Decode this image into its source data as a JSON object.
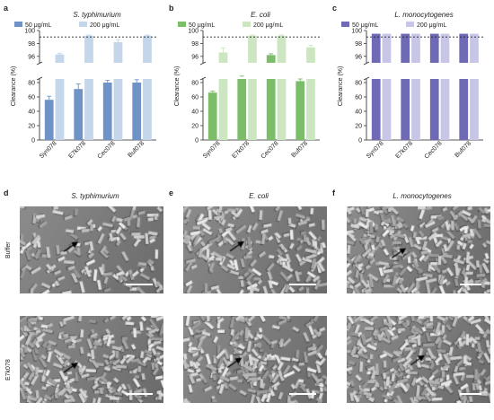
{
  "panels": {
    "a": {
      "letter": "a",
      "title": "S. typhimurium"
    },
    "b": {
      "letter": "b",
      "title": "E. coli"
    },
    "c": {
      "letter": "c",
      "title": "L. monocytogenes"
    },
    "d": {
      "letter": "d",
      "title": "S. typhimurium"
    },
    "e": {
      "letter": "e",
      "title": "E. coli"
    },
    "f": {
      "letter": "f",
      "title": "L. monocytogenes"
    }
  },
  "row_labels": {
    "buffer": "Buffer",
    "peptide": "E7k078"
  },
  "colors": {
    "a_dark": "#6f93c7",
    "a_light": "#c4d6ea",
    "b_dark": "#7cbd6a",
    "b_light": "#cde6c2",
    "c_dark": "#6e6ab5",
    "c_light": "#c8c6e6"
  },
  "chart_data": [
    {
      "type": "bar",
      "title": "S. typhimurium",
      "ylabel": "Clearance (%)",
      "categories": [
        "Syn078",
        "E7k078",
        "Cec078",
        "Buf078"
      ],
      "series": [
        {
          "name": "50 μg/mL",
          "values": [
            56,
            71,
            80,
            80
          ],
          "errors": [
            5,
            7,
            3,
            4
          ]
        },
        {
          "name": "200 μg/mL",
          "values": [
            96.3,
            99.2,
            98.2,
            99.2
          ],
          "errors": [
            0.2,
            0.1,
            0.4,
            0.1
          ]
        }
      ],
      "y_lower_ticks": [
        "0",
        "20",
        "40",
        "60",
        "80"
      ],
      "y_upper_ticks": [
        "96",
        "98",
        "100"
      ],
      "broken_axis": {
        "lower": [
          0,
          85
        ],
        "upper": [
          95,
          100
        ]
      },
      "reference_line": 99,
      "legend": "top"
    },
    {
      "type": "bar",
      "title": "E. coli",
      "ylabel": "Clearance (%)",
      "categories": [
        "Syn078",
        "E7k078",
        "Cec078",
        "Buf078"
      ],
      "series": [
        {
          "name": "50 μg/mL",
          "values": [
            66,
            88,
            96.2,
            82
          ],
          "errors": [
            2,
            1,
            0.2,
            3
          ]
        },
        {
          "name": "200 μg/mL",
          "values": [
            96.6,
            99.2,
            99.2,
            97.4
          ],
          "errors": [
            0.7,
            0.1,
            0.1,
            0.3
          ]
        }
      ],
      "y_lower_ticks": [
        "0",
        "20",
        "40",
        "60",
        "80"
      ],
      "y_upper_ticks": [
        "96",
        "98",
        "100"
      ],
      "broken_axis": {
        "lower": [
          0,
          85
        ],
        "upper": [
          95,
          100
        ]
      },
      "reference_line": 99,
      "legend": "top"
    },
    {
      "type": "bar",
      "title": "L. monocytogenes",
      "ylabel": "Clearance (%)",
      "categories": [
        "Syn078",
        "E7k078",
        "Cec078",
        "Buf078"
      ],
      "series": [
        {
          "name": "50 μg/mL",
          "values": [
            99.5,
            99.5,
            99.5,
            99.5
          ],
          "errors": [
            0,
            0,
            0,
            0
          ]
        },
        {
          "name": "200 μg/mL",
          "values": [
            99.5,
            99.5,
            99.5,
            99.5
          ],
          "errors": [
            0,
            0,
            0,
            0
          ]
        }
      ],
      "y_lower_ticks": [
        "0",
        "20",
        "40",
        "60",
        "80"
      ],
      "y_upper_ticks": [
        "96",
        "98",
        "100"
      ],
      "broken_axis": {
        "lower": [
          0,
          85
        ],
        "upper": [
          95,
          100
        ]
      },
      "reference_line": 99,
      "legend": "top"
    }
  ]
}
